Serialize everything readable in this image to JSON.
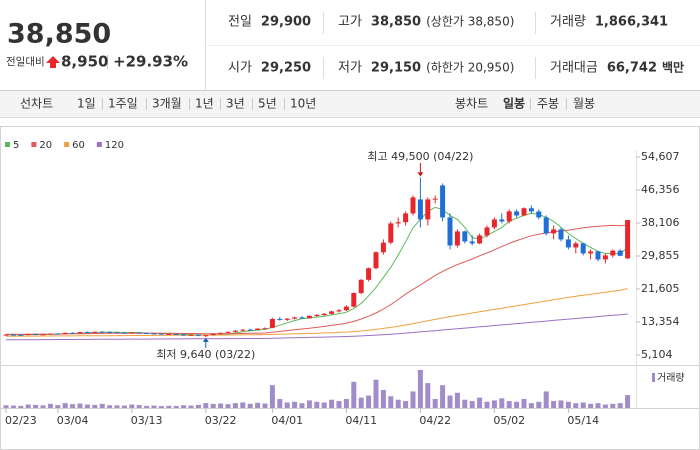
{
  "header": {
    "price": "38,850",
    "price_color": "#e8262c",
    "change_label": "전일대비",
    "change": "8,950",
    "change_pct": "+29.93%",
    "stats": [
      {
        "label": "전일",
        "value": "29,900",
        "color": "#222"
      },
      {
        "label": "고가",
        "value": "38,850",
        "note": "(상한가 38,850)",
        "color": "#e8262c"
      },
      {
        "label": "거래량",
        "value": "1,866,341",
        "color": "#222"
      },
      {
        "label": "시가",
        "value": "29,250",
        "color": "#1f6fd6"
      },
      {
        "label": "저가",
        "value": "29,150",
        "note": "(하한가 20,950)",
        "color": "#1f6fd6"
      },
      {
        "label": "거래대금",
        "value": "66,742",
        "unit": "백만",
        "color": "#222"
      }
    ]
  },
  "toolbar": {
    "line": {
      "label": "선차트",
      "items": [
        "1일",
        "1주일",
        "3개월",
        "1년",
        "3년",
        "5년",
        "10년"
      ]
    },
    "candle": {
      "label": "봉차트",
      "items": [
        "일봉",
        "주봉",
        "월봉"
      ],
      "selected": "일봉"
    }
  },
  "chart_data": {
    "type": "candlestick",
    "categories": [
      "02/23",
      null,
      null,
      null,
      null,
      null,
      null,
      "03/04",
      null,
      null,
      null,
      null,
      null,
      null,
      null,
      null,
      null,
      "03/13",
      null,
      null,
      null,
      null,
      null,
      null,
      null,
      null,
      null,
      "03/22",
      null,
      null,
      null,
      null,
      null,
      null,
      null,
      null,
      "04/01",
      null,
      null,
      null,
      null,
      null,
      null,
      null,
      null,
      null,
      "04/11",
      null,
      null,
      null,
      null,
      null,
      null,
      null,
      null,
      null,
      "04/22",
      null,
      null,
      null,
      null,
      null,
      null,
      null,
      null,
      null,
      "05/02",
      null,
      null,
      null,
      null,
      null,
      null,
      null,
      null,
      null,
      "05/14",
      null,
      null,
      null,
      null,
      null,
      null,
      null,
      null
    ],
    "candles": [
      [
        10150,
        10300,
        10000,
        10200
      ],
      [
        10200,
        10350,
        10100,
        10150
      ],
      [
        10150,
        10250,
        10050,
        10100
      ],
      [
        10100,
        10400,
        10050,
        10350
      ],
      [
        10350,
        10450,
        10200,
        10250
      ],
      [
        10250,
        10350,
        10150,
        10300
      ],
      [
        10300,
        10500,
        10250,
        10450
      ],
      [
        10450,
        10600,
        10300,
        10350
      ],
      [
        10350,
        10700,
        10300,
        10650
      ],
      [
        10650,
        10800,
        10500,
        10550
      ],
      [
        10550,
        10900,
        10500,
        10850
      ],
      [
        10850,
        11000,
        10700,
        10750
      ],
      [
        10750,
        10950,
        10650,
        10900
      ],
      [
        10900,
        11100,
        10800,
        10850
      ],
      [
        10850,
        11000,
        10700,
        10800
      ],
      [
        10800,
        10900,
        10600,
        10700
      ],
      [
        10700,
        10850,
        10550,
        10650
      ],
      [
        10650,
        10800,
        10500,
        10750
      ],
      [
        10750,
        10850,
        10550,
        10600
      ],
      [
        10600,
        10700,
        10400,
        10500
      ],
      [
        10500,
        10650,
        10350,
        10450
      ],
      [
        10450,
        10550,
        10250,
        10300
      ],
      [
        10300,
        10450,
        10150,
        10350
      ],
      [
        10350,
        10400,
        10100,
        10200
      ],
      [
        10200,
        10300,
        9950,
        10050
      ],
      [
        10050,
        10250,
        9900,
        10150
      ],
      [
        10150,
        10200,
        9800,
        9900
      ],
      [
        9900,
        10100,
        9640,
        10050
      ],
      [
        10050,
        10500,
        10000,
        10400
      ],
      [
        10400,
        10700,
        10300,
        10650
      ],
      [
        10650,
        11000,
        10550,
        10900
      ],
      [
        10900,
        11300,
        10800,
        11200
      ],
      [
        11200,
        11600,
        11000,
        11450
      ],
      [
        11450,
        11700,
        11200,
        11350
      ],
      [
        11350,
        11800,
        11300,
        11700
      ],
      [
        11700,
        12000,
        11500,
        11800
      ],
      [
        11900,
        14400,
        11800,
        14100
      ],
      [
        14100,
        14600,
        13700,
        13900
      ],
      [
        13900,
        14300,
        13600,
        14200
      ],
      [
        14200,
        14700,
        14000,
        14500
      ],
      [
        14500,
        14800,
        14100,
        14300
      ],
      [
        14300,
        15000,
        14200,
        14900
      ],
      [
        14900,
        15400,
        14700,
        15100
      ],
      [
        15100,
        15600,
        14900,
        15400
      ],
      [
        15400,
        16200,
        15200,
        16000
      ],
      [
        16000,
        16600,
        15700,
        16300
      ],
      [
        16300,
        17500,
        16100,
        17200
      ],
      [
        17200,
        20800,
        17000,
        20600
      ],
      [
        20600,
        24100,
        20300,
        23900
      ],
      [
        23900,
        27000,
        23500,
        26800
      ],
      [
        26800,
        31000,
        26500,
        30800
      ],
      [
        30800,
        34000,
        30200,
        33200
      ],
      [
        33200,
        38500,
        32800,
        38000
      ],
      [
        38000,
        39500,
        37000,
        38300
      ],
      [
        38300,
        41000,
        37500,
        40500
      ],
      [
        40500,
        45000,
        40000,
        44500
      ],
      [
        44000,
        49500,
        37000,
        39000
      ],
      [
        39000,
        44500,
        37500,
        44000
      ],
      [
        44000,
        45000,
        43000,
        44200
      ],
      [
        47500,
        48000,
        38500,
        39500
      ],
      [
        39500,
        40500,
        31500,
        32500
      ],
      [
        32500,
        36500,
        32000,
        36000
      ],
      [
        36000,
        36200,
        33000,
        33500
      ],
      [
        33500,
        35000,
        32500,
        33000
      ],
      [
        33000,
        35500,
        32800,
        35000
      ],
      [
        35000,
        37500,
        34500,
        37000
      ],
      [
        37000,
        39500,
        36500,
        39000
      ],
      [
        39000,
        40500,
        38000,
        38500
      ],
      [
        38500,
        41500,
        38000,
        41000
      ],
      [
        41000,
        41500,
        39500,
        40000
      ],
      [
        40000,
        42000,
        39800,
        41800
      ],
      [
        41800,
        42500,
        40500,
        41000
      ],
      [
        41000,
        41500,
        39000,
        39500
      ],
      [
        39500,
        40000,
        35000,
        35500
      ],
      [
        35500,
        37500,
        34000,
        36500
      ],
      [
        36500,
        37000,
        33500,
        34000
      ],
      [
        34000,
        35000,
        31500,
        32000
      ],
      [
        32000,
        33500,
        30500,
        33000
      ],
      [
        33000,
        33200,
        30000,
        30500
      ],
      [
        30500,
        31500,
        29000,
        31000
      ],
      [
        31000,
        31200,
        28500,
        29000
      ],
      [
        29000,
        30500,
        28000,
        30000
      ],
      [
        30000,
        31500,
        29500,
        31200
      ],
      [
        31200,
        31500,
        29800,
        29900
      ],
      [
        29250,
        38850,
        29150,
        38850
      ]
    ],
    "volume": [
      400000,
      350000,
      300000,
      500000,
      450000,
      380000,
      600000,
      420000,
      700000,
      550000,
      650000,
      500000,
      450000,
      600000,
      400000,
      380000,
      350000,
      500000,
      420000,
      300000,
      350000,
      280000,
      320000,
      300000,
      400000,
      350000,
      450000,
      700000,
      600000,
      650000,
      550000,
      700000,
      800000,
      600000,
      750000,
      650000,
      3300000,
      1300000,
      800000,
      900000,
      700000,
      1100000,
      900000,
      800000,
      1200000,
      1000000,
      1300000,
      3800000,
      1500000,
      1800000,
      4100000,
      2600000,
      1700000,
      1200000,
      1000000,
      2400000,
      5500000,
      3600000,
      1300000,
      3300000,
      1800000,
      2200000,
      1200000,
      1000000,
      1500000,
      900000,
      1100000,
      1400000,
      1000000,
      900000,
      1300000,
      700000,
      900000,
      2400000,
      1000000,
      1100000,
      900000,
      700000,
      800000,
      600000,
      700000,
      500000,
      600000,
      700000,
      1866341
    ],
    "volume_label": "거래량",
    "volume_color": "#a08cc8",
    "up_color": "#e8262c",
    "down_color": "#1f6fd6",
    "series": [
      {
        "name": "5",
        "color": "#5cb85c",
        "values": [
          10200,
          10180,
          10150,
          10200,
          10210,
          10250,
          10300,
          10350,
          10400,
          10460,
          10570,
          10640,
          10740,
          10820,
          10830,
          10800,
          10740,
          10720,
          10700,
          10610,
          10550,
          10480,
          10410,
          10360,
          10270,
          10210,
          10150,
          10100,
          10110,
          10230,
          10390,
          10640,
          10920,
          11120,
          11340,
          11500,
          12000,
          12550,
          13150,
          13700,
          14200,
          14360,
          14600,
          14800,
          15140,
          15420,
          15800,
          16700,
          18000,
          19900,
          22000,
          24500,
          27000,
          30100,
          33400,
          36900,
          39000,
          41000,
          42000,
          41500,
          40000,
          39000,
          37000,
          34500,
          34000,
          35000,
          36000,
          37000,
          38500,
          39300,
          40000,
          40500,
          40300,
          39500,
          38500,
          37000,
          35500,
          34200,
          33000,
          32000,
          31000,
          30500,
          30500,
          30400,
          32000
        ]
      },
      {
        "name": "20",
        "color": "#e05a5a",
        "values": [
          10300,
          10300,
          10300,
          10310,
          10320,
          10330,
          10340,
          10360,
          10380,
          10400,
          10430,
          10460,
          10490,
          10510,
          10530,
          10540,
          10550,
          10560,
          10560,
          10560,
          10550,
          10540,
          10530,
          10510,
          10490,
          10470,
          10450,
          10430,
          10420,
          10420,
          10430,
          10450,
          10480,
          10520,
          10560,
          10600,
          10800,
          11000,
          11200,
          11400,
          11600,
          11800,
          12000,
          12250,
          12500,
          12750,
          13050,
          13500,
          14100,
          14800,
          15600,
          16600,
          17700,
          19000,
          20300,
          21500,
          22600,
          23800,
          25000,
          26000,
          26900,
          27700,
          28400,
          29100,
          29900,
          30600,
          31400,
          32200,
          33000,
          33700,
          34300,
          34900,
          35300,
          35600,
          35900,
          36100,
          36300,
          36600,
          36900,
          37100,
          37300,
          37400,
          37500,
          37400,
          37600
        ]
      },
      {
        "name": "60",
        "color": "#f0a040",
        "values": [
          9800,
          9810,
          9820,
          9830,
          9840,
          9850,
          9860,
          9870,
          9880,
          9890,
          9900,
          9910,
          9920,
          9930,
          9940,
          9950,
          9960,
          9970,
          9980,
          9990,
          10000,
          10010,
          10020,
          10030,
          10040,
          10050,
          10060,
          10070,
          10080,
          10090,
          10100,
          10120,
          10140,
          10160,
          10180,
          10200,
          10250,
          10300,
          10350,
          10400,
          10450,
          10500,
          10560,
          10620,
          10680,
          10750,
          10820,
          10950,
          11100,
          11300,
          11500,
          11750,
          12000,
          12300,
          12600,
          12950,
          13300,
          13650,
          14000,
          14350,
          14700,
          15000,
          15300,
          15600,
          15900,
          16200,
          16500,
          16800,
          17100,
          17400,
          17700,
          18000,
          18300,
          18600,
          18900,
          19200,
          19500,
          19800,
          20050,
          20300,
          20550,
          20800,
          21050,
          21300,
          21700
        ]
      },
      {
        "name": "120",
        "color": "#9d6fc4",
        "values": [
          8900,
          8910,
          8920,
          8930,
          8940,
          8950,
          8960,
          8970,
          8980,
          8990,
          9000,
          9010,
          9020,
          9030,
          9040,
          9050,
          9060,
          9070,
          9080,
          9090,
          9100,
          9110,
          9120,
          9130,
          9140,
          9150,
          9160,
          9170,
          9180,
          9190,
          9200,
          9210,
          9220,
          9230,
          9240,
          9250,
          9300,
          9340,
          9380,
          9420,
          9460,
          9500,
          9540,
          9580,
          9620,
          9670,
          9720,
          9800,
          9880,
          9970,
          10070,
          10180,
          10300,
          10430,
          10570,
          10720,
          10870,
          11030,
          11190,
          11350,
          11510,
          11670,
          11830,
          11990,
          12150,
          12310,
          12470,
          12630,
          12790,
          12950,
          13110,
          13270,
          13430,
          13590,
          13750,
          13910,
          14070,
          14230,
          14390,
          14550,
          14710,
          14870,
          15030,
          15190,
          15350
        ]
      }
    ],
    "ylim": [
      5104,
      54607
    ],
    "yticks": [
      {
        "value": 54607,
        "label": "54,607"
      },
      {
        "value": 46356,
        "label": "46,356"
      },
      {
        "value": 38106,
        "label": "38,106"
      },
      {
        "value": 29855,
        "label": "29,855"
      },
      {
        "value": 21605,
        "label": "21,605"
      },
      {
        "value": 13354,
        "label": "13,354"
      },
      {
        "value": 5104,
        "label": "5,104"
      }
    ],
    "annotations": {
      "high": {
        "text": "최고 49,500 (04/22)",
        "color": "#cc1111"
      },
      "low": {
        "text": "최저 9,640 (03/22)",
        "color": "#1a5ea8"
      }
    }
  }
}
